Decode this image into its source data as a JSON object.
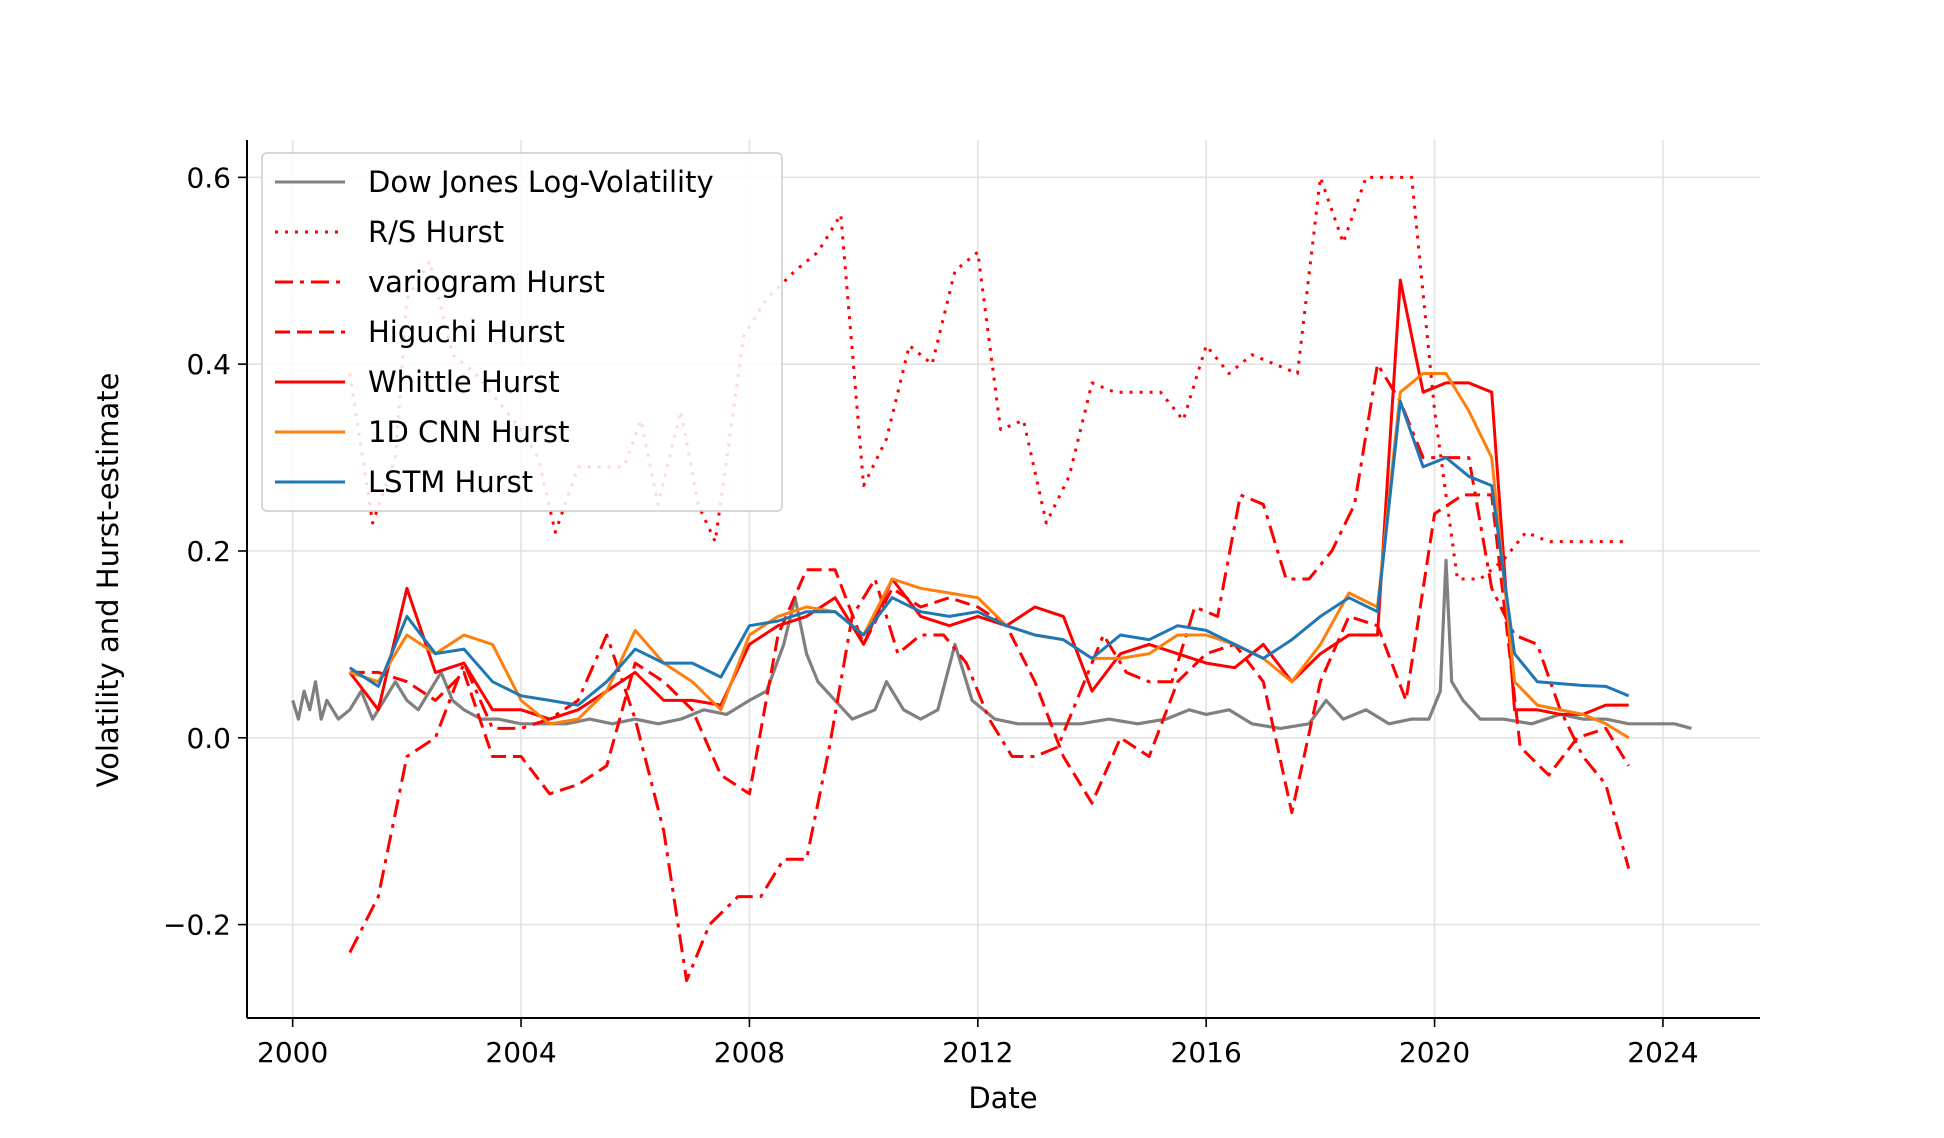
{
  "chart_data": {
    "type": "line",
    "xlabel": "Date",
    "ylabel": "Volatility and Hurst-estimate",
    "xlim": [
      1999.2,
      2025.7
    ],
    "ylim": [
      -0.3,
      0.64
    ],
    "x_ticks": [
      2000,
      2004,
      2008,
      2012,
      2016,
      2020,
      2024
    ],
    "x_tick_labels": [
      "2000",
      "2004",
      "2008",
      "2012",
      "2016",
      "2020",
      "2024"
    ],
    "y_ticks": [
      -0.2,
      0.0,
      0.2,
      0.4,
      0.6
    ],
    "y_tick_labels": [
      "−0.2",
      "0.0",
      "0.2",
      "0.4",
      "0.6"
    ],
    "grid": true,
    "legend_position": "top-left",
    "series": [
      {
        "name": "Dow Jones Log-Volatility",
        "color": "#808080",
        "style": "solid",
        "x": [
          2000.0,
          2000.1,
          2000.2,
          2000.3,
          2000.4,
          2000.5,
          2000.6,
          2000.8,
          2001.0,
          2001.2,
          2001.4,
          2001.6,
          2001.8,
          2002.0,
          2002.2,
          2002.4,
          2002.6,
          2002.8,
          2003.0,
          2003.3,
          2003.6,
          2004.0,
          2004.4,
          2004.8,
          2005.2,
          2005.6,
          2006.0,
          2006.4,
          2006.8,
          2007.2,
          2007.6,
          2008.0,
          2008.3,
          2008.6,
          2008.8,
          2009.0,
          2009.2,
          2009.5,
          2009.8,
          2010.2,
          2010.4,
          2010.7,
          2011.0,
          2011.3,
          2011.6,
          2011.9,
          2012.3,
          2012.7,
          2013.2,
          2013.8,
          2014.3,
          2014.8,
          2015.3,
          2015.7,
          2016.0,
          2016.4,
          2016.8,
          2017.3,
          2017.8,
          2018.1,
          2018.4,
          2018.8,
          2019.2,
          2019.6,
          2019.9,
          2020.1,
          2020.2,
          2020.3,
          2020.5,
          2020.8,
          2021.2,
          2021.7,
          2022.2,
          2022.6,
          2023.0,
          2023.4,
          2023.8,
          2024.2,
          2024.5
        ],
        "y": [
          0.04,
          0.02,
          0.05,
          0.03,
          0.06,
          0.02,
          0.04,
          0.02,
          0.03,
          0.05,
          0.02,
          0.04,
          0.06,
          0.04,
          0.03,
          0.05,
          0.07,
          0.04,
          0.03,
          0.02,
          0.02,
          0.015,
          0.015,
          0.015,
          0.02,
          0.015,
          0.02,
          0.015,
          0.02,
          0.03,
          0.025,
          0.04,
          0.05,
          0.1,
          0.15,
          0.09,
          0.06,
          0.04,
          0.02,
          0.03,
          0.06,
          0.03,
          0.02,
          0.03,
          0.1,
          0.04,
          0.02,
          0.015,
          0.015,
          0.015,
          0.02,
          0.015,
          0.02,
          0.03,
          0.025,
          0.03,
          0.015,
          0.01,
          0.015,
          0.04,
          0.02,
          0.03,
          0.015,
          0.02,
          0.02,
          0.05,
          0.19,
          0.06,
          0.04,
          0.02,
          0.02,
          0.015,
          0.025,
          0.02,
          0.02,
          0.015,
          0.015,
          0.015,
          0.01
        ]
      },
      {
        "name": "R/S Hurst",
        "color": "#ff0000",
        "style": "dotted",
        "x": [
          2001.0,
          2001.4,
          2001.8,
          2002.0,
          2002.4,
          2002.8,
          2003.2,
          2003.6,
          2004.0,
          2004.3,
          2004.6,
          2005.0,
          2005.4,
          2005.8,
          2006.1,
          2006.4,
          2006.8,
          2007.1,
          2007.4,
          2007.9,
          2008.3,
          2008.8,
          2009.2,
          2009.6,
          2010.0,
          2010.4,
          2010.8,
          2011.2,
          2011.6,
          2012.0,
          2012.4,
          2012.8,
          2013.2,
          2013.6,
          2014.0,
          2014.4,
          2014.8,
          2015.2,
          2015.6,
          2016.0,
          2016.4,
          2016.8,
          2017.2,
          2017.6,
          2018.0,
          2018.4,
          2018.8,
          2019.2,
          2019.6,
          2020.0,
          2020.4,
          2020.8,
          2021.2,
          2021.6,
          2022.0,
          2022.4,
          2022.8,
          2023.2,
          2023.4
        ],
        "y": [
          0.39,
          0.23,
          0.3,
          0.47,
          0.51,
          0.41,
          0.39,
          0.36,
          0.33,
          0.3,
          0.22,
          0.29,
          0.29,
          0.29,
          0.34,
          0.25,
          0.35,
          0.25,
          0.21,
          0.43,
          0.47,
          0.5,
          0.52,
          0.56,
          0.27,
          0.32,
          0.42,
          0.4,
          0.5,
          0.52,
          0.33,
          0.34,
          0.23,
          0.28,
          0.38,
          0.37,
          0.37,
          0.37,
          0.34,
          0.42,
          0.39,
          0.41,
          0.4,
          0.39,
          0.6,
          0.53,
          0.6,
          0.6,
          0.6,
          0.35,
          0.17,
          0.17,
          0.19,
          0.22,
          0.21,
          0.21,
          0.21,
          0.21,
          0.21
        ]
      },
      {
        "name": "variogram Hurst",
        "color": "#ff0000",
        "style": "dashdot",
        "x": [
          2001.0,
          2001.5,
          2002.0,
          2002.5,
          2003.0,
          2003.5,
          2004.0,
          2004.5,
          2005.0,
          2005.5,
          2006.0,
          2006.5,
          2006.9,
          2007.3,
          2007.8,
          2008.2,
          2008.6,
          2009.0,
          2009.4,
          2009.8,
          2010.2,
          2010.6,
          2011.0,
          2011.4,
          2011.8,
          2012.2,
          2012.6,
          2013.0,
          2013.4,
          2013.8,
          2014.2,
          2014.6,
          2015.0,
          2015.4,
          2015.8,
          2016.2,
          2016.6,
          2017.0,
          2017.4,
          2017.8,
          2018.2,
          2018.6,
          2019.0,
          2019.4,
          2019.8,
          2020.2,
          2020.6,
          2021.0,
          2021.4,
          2021.8,
          2022.2,
          2022.6,
          2023.0,
          2023.4
        ],
        "y": [
          -0.23,
          -0.17,
          -0.02,
          0.0,
          0.08,
          0.01,
          0.01,
          0.02,
          0.04,
          0.11,
          0.02,
          -0.1,
          -0.26,
          -0.2,
          -0.17,
          -0.17,
          -0.13,
          -0.13,
          -0.01,
          0.13,
          0.17,
          0.09,
          0.11,
          0.11,
          0.08,
          0.02,
          -0.02,
          -0.02,
          -0.01,
          0.05,
          0.11,
          0.07,
          0.06,
          0.06,
          0.14,
          0.13,
          0.26,
          0.25,
          0.17,
          0.17,
          0.2,
          0.25,
          0.4,
          0.36,
          0.3,
          0.3,
          0.3,
          0.16,
          0.11,
          0.1,
          0.03,
          -0.02,
          -0.05,
          -0.14
        ]
      },
      {
        "name": "Higuchi Hurst",
        "color": "#ff0000",
        "style": "dashed",
        "x": [
          2001.0,
          2001.5,
          2002.0,
          2002.5,
          2003.0,
          2003.5,
          2004.0,
          2004.5,
          2005.0,
          2005.5,
          2006.0,
          2006.5,
          2007.0,
          2007.5,
          2008.0,
          2008.5,
          2009.0,
          2009.5,
          2010.0,
          2010.5,
          2011.0,
          2011.5,
          2012.0,
          2012.5,
          2013.0,
          2013.5,
          2014.0,
          2014.5,
          2015.0,
          2015.5,
          2016.0,
          2016.5,
          2017.0,
          2017.5,
          2018.0,
          2018.5,
          2019.0,
          2019.5,
          2020.0,
          2020.5,
          2021.0,
          2021.5,
          2022.0,
          2022.5,
          2023.0,
          2023.4
        ],
        "y": [
          0.07,
          0.07,
          0.06,
          0.04,
          0.07,
          -0.02,
          -0.02,
          -0.06,
          -0.05,
          -0.03,
          0.08,
          0.06,
          0.03,
          -0.04,
          -0.06,
          0.11,
          0.18,
          0.18,
          0.1,
          0.16,
          0.14,
          0.15,
          0.14,
          0.12,
          0.06,
          -0.02,
          -0.07,
          0.0,
          -0.02,
          0.06,
          0.09,
          0.1,
          0.06,
          -0.08,
          0.06,
          0.13,
          0.12,
          0.04,
          0.24,
          0.26,
          0.26,
          -0.01,
          -0.04,
          0.0,
          0.01,
          -0.03
        ]
      },
      {
        "name": "Whittle Hurst",
        "color": "#ff0000",
        "style": "solid",
        "x": [
          2001.0,
          2001.5,
          2002.0,
          2002.5,
          2003.0,
          2003.5,
          2004.0,
          2004.5,
          2005.0,
          2005.5,
          2006.0,
          2006.5,
          2007.0,
          2007.5,
          2008.0,
          2008.5,
          2009.0,
          2009.5,
          2010.0,
          2010.5,
          2011.0,
          2011.5,
          2012.0,
          2012.5,
          2013.0,
          2013.5,
          2014.0,
          2014.5,
          2015.0,
          2015.5,
          2016.0,
          2016.5,
          2017.0,
          2017.5,
          2018.0,
          2018.5,
          2019.0,
          2019.4,
          2019.8,
          2020.2,
          2020.6,
          2021.0,
          2021.4,
          2021.8,
          2022.2,
          2022.6,
          2023.0,
          2023.4
        ],
        "y": [
          0.07,
          0.03,
          0.16,
          0.07,
          0.08,
          0.03,
          0.03,
          0.02,
          0.03,
          0.05,
          0.07,
          0.04,
          0.04,
          0.035,
          0.1,
          0.12,
          0.13,
          0.15,
          0.1,
          0.17,
          0.13,
          0.12,
          0.13,
          0.12,
          0.14,
          0.13,
          0.05,
          0.09,
          0.1,
          0.09,
          0.08,
          0.075,
          0.1,
          0.06,
          0.09,
          0.11,
          0.11,
          0.49,
          0.37,
          0.38,
          0.38,
          0.37,
          0.03,
          0.03,
          0.025,
          0.025,
          0.035,
          0.035
        ]
      },
      {
        "name": "1D CNN Hurst",
        "color": "#ff7f0e",
        "style": "solid",
        "x": [
          2001.0,
          2001.5,
          2002.0,
          2002.5,
          2003.0,
          2003.5,
          2004.0,
          2004.5,
          2005.0,
          2005.5,
          2006.0,
          2006.5,
          2007.0,
          2007.5,
          2008.0,
          2008.5,
          2009.0,
          2009.5,
          2010.0,
          2010.5,
          2011.0,
          2011.5,
          2012.0,
          2012.5,
          2013.0,
          2013.5,
          2014.0,
          2014.5,
          2015.0,
          2015.5,
          2016.0,
          2016.5,
          2017.0,
          2017.5,
          2018.0,
          2018.5,
          2019.0,
          2019.4,
          2019.8,
          2020.2,
          2020.6,
          2021.0,
          2021.4,
          2021.8,
          2022.2,
          2022.6,
          2023.0,
          2023.4
        ],
        "y": [
          0.07,
          0.06,
          0.11,
          0.09,
          0.11,
          0.1,
          0.04,
          0.015,
          0.02,
          0.05,
          0.115,
          0.08,
          0.06,
          0.03,
          0.11,
          0.13,
          0.14,
          0.135,
          0.11,
          0.17,
          0.16,
          0.155,
          0.15,
          0.12,
          0.11,
          0.105,
          0.085,
          0.085,
          0.09,
          0.11,
          0.11,
          0.1,
          0.085,
          0.06,
          0.1,
          0.155,
          0.14,
          0.37,
          0.39,
          0.39,
          0.35,
          0.3,
          0.06,
          0.035,
          0.03,
          0.025,
          0.015,
          0.0
        ]
      },
      {
        "name": "LSTM Hurst",
        "color": "#1f77b4",
        "style": "solid",
        "x": [
          2001.0,
          2001.5,
          2002.0,
          2002.5,
          2003.0,
          2003.5,
          2004.0,
          2004.5,
          2005.0,
          2005.5,
          2006.0,
          2006.5,
          2007.0,
          2007.5,
          2008.0,
          2008.5,
          2009.0,
          2009.5,
          2010.0,
          2010.5,
          2011.0,
          2011.5,
          2012.0,
          2012.5,
          2013.0,
          2013.5,
          2014.0,
          2014.5,
          2015.0,
          2015.5,
          2016.0,
          2016.5,
          2017.0,
          2017.5,
          2018.0,
          2018.5,
          2019.0,
          2019.4,
          2019.8,
          2020.2,
          2020.6,
          2021.0,
          2021.4,
          2021.8,
          2022.2,
          2022.6,
          2023.0,
          2023.4
        ],
        "y": [
          0.075,
          0.055,
          0.13,
          0.09,
          0.095,
          0.06,
          0.045,
          0.04,
          0.035,
          0.06,
          0.095,
          0.08,
          0.08,
          0.065,
          0.12,
          0.125,
          0.135,
          0.135,
          0.11,
          0.15,
          0.135,
          0.13,
          0.135,
          0.12,
          0.11,
          0.105,
          0.085,
          0.11,
          0.105,
          0.12,
          0.115,
          0.1,
          0.085,
          0.105,
          0.13,
          0.15,
          0.135,
          0.36,
          0.29,
          0.3,
          0.28,
          0.27,
          0.09,
          0.06,
          0.058,
          0.056,
          0.055,
          0.045
        ]
      }
    ]
  }
}
